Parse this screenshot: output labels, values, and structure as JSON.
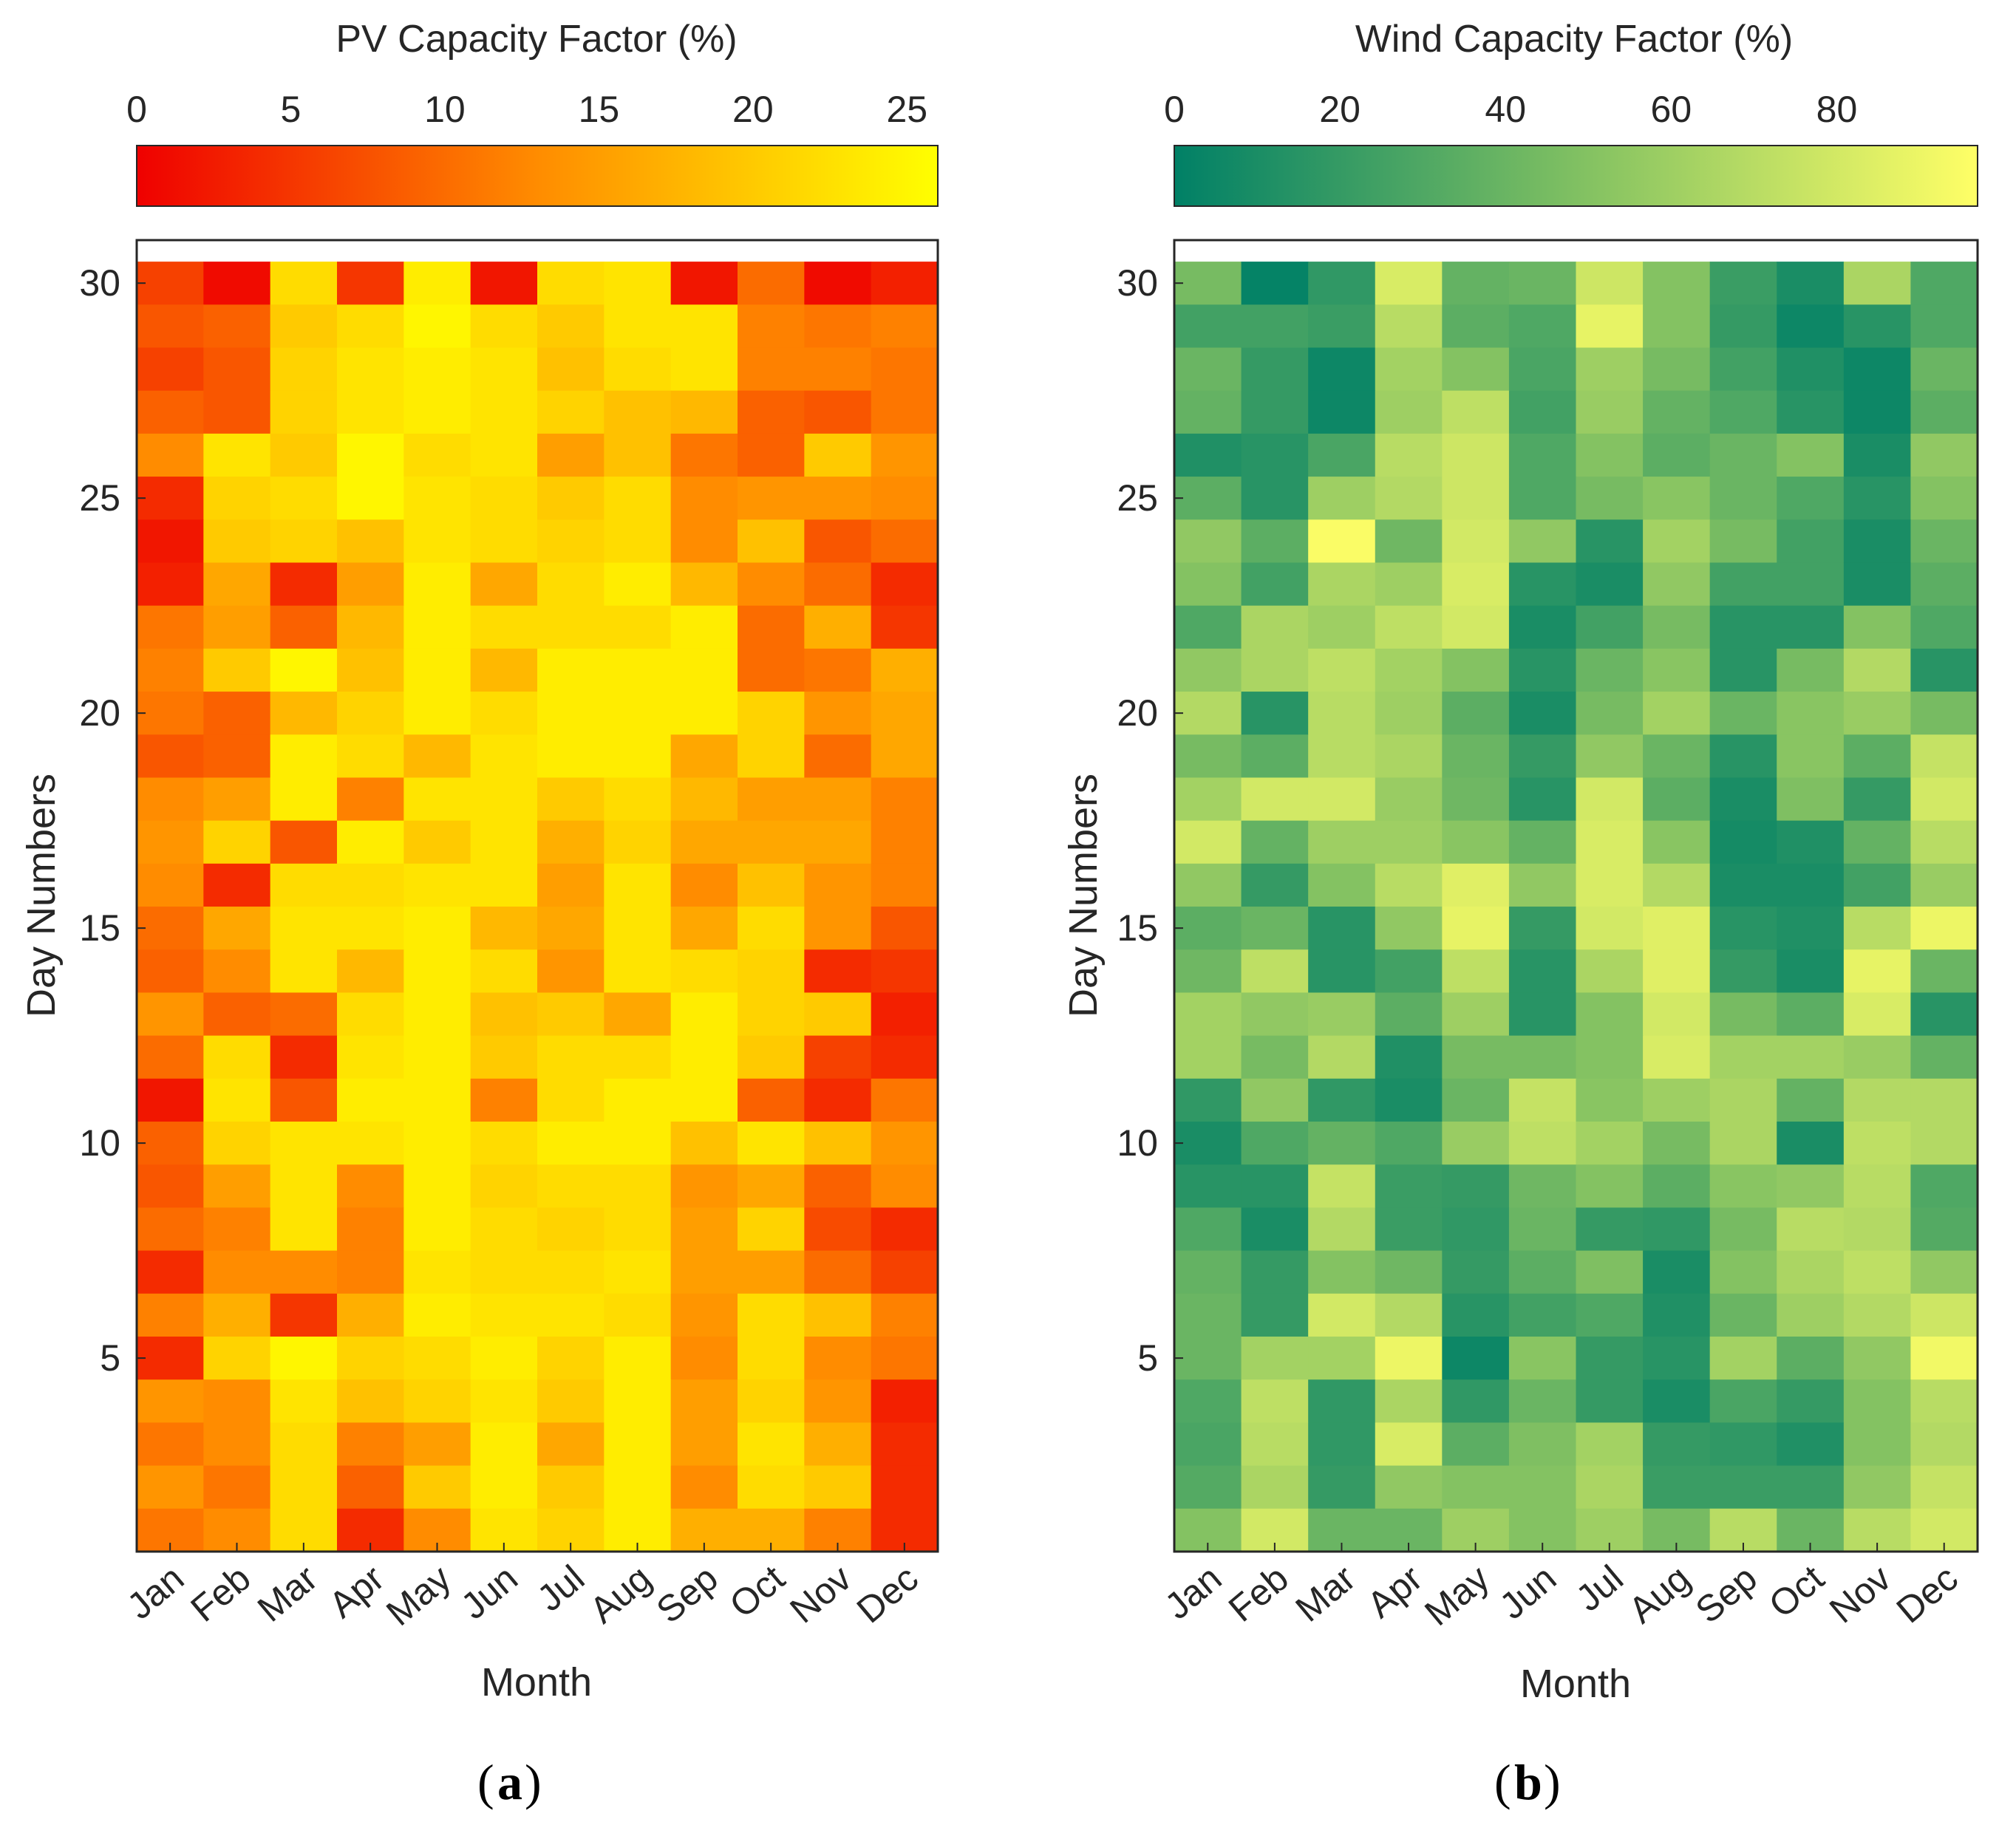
{
  "chart_data": [
    {
      "type": "heatmap",
      "panel_label": "a",
      "colorbar": {
        "title": "PV Capacity Factor (%)",
        "range": [
          0,
          26
        ],
        "ticks": [
          0,
          5,
          10,
          15,
          20,
          25
        ],
        "tick_labels": [
          "0",
          "5",
          "10",
          "15",
          "20",
          "25"
        ],
        "colormap_stops": [
          "#ef0000",
          "#ff8c00",
          "#ffff00"
        ]
      },
      "xlabel": "Month",
      "ylabel": "Day Numbers",
      "x_categories": [
        "Jan",
        "Feb",
        "Mar",
        "Apr",
        "May",
        "Jun",
        "Jul",
        "Aug",
        "Sep",
        "Oct",
        "Nov",
        "Dec"
      ],
      "y_ticks": [
        5,
        10,
        15,
        20,
        25,
        30
      ],
      "y_tick_labels": [
        "5",
        "10",
        "15",
        "20",
        "25",
        "30"
      ],
      "y_range": [
        0.5,
        30.5
      ],
      "cell_rows_note": "rows listed from the top row (day 30) downward to day 1",
      "values": [
        [
          6,
          1,
          22,
          5,
          24,
          2,
          22,
          23,
          2,
          10,
          1,
          3
        ],
        [
          8,
          9,
          20,
          22,
          25,
          22,
          20,
          23,
          23,
          12,
          11,
          12
        ],
        [
          6,
          8,
          21,
          23,
          24,
          23,
          19,
          22,
          23,
          12,
          12,
          11
        ],
        [
          9,
          8,
          21,
          23,
          24,
          23,
          21,
          19,
          18,
          9,
          8,
          11
        ],
        [
          13,
          23,
          20,
          25,
          22,
          23,
          15,
          19,
          11,
          9,
          20,
          14
        ],
        [
          4,
          21,
          22,
          25,
          23,
          22,
          20,
          22,
          13,
          14,
          14,
          13
        ],
        [
          2,
          20,
          21,
          19,
          23,
          22,
          21,
          22,
          13,
          19,
          8,
          10
        ],
        [
          3,
          16,
          4,
          15,
          24,
          16,
          22,
          24,
          18,
          13,
          10,
          4
        ],
        [
          11,
          15,
          9,
          18,
          24,
          22,
          22,
          22,
          24,
          10,
          17,
          5
        ],
        [
          12,
          20,
          25,
          19,
          24,
          18,
          24,
          24,
          24,
          10,
          11,
          17
        ],
        [
          11,
          9,
          18,
          21,
          24,
          22,
          24,
          24,
          24,
          21,
          14,
          16
        ],
        [
          8,
          9,
          24,
          22,
          18,
          23,
          24,
          24,
          16,
          21,
          10,
          16
        ],
        [
          13,
          15,
          24,
          12,
          23,
          23,
          20,
          22,
          18,
          15,
          15,
          12
        ],
        [
          14,
          21,
          8,
          24,
          20,
          23,
          17,
          21,
          16,
          16,
          16,
          12
        ],
        [
          13,
          4,
          22,
          22,
          23,
          23,
          15,
          23,
          13,
          19,
          14,
          12
        ],
        [
          10,
          16,
          23,
          23,
          24,
          18,
          16,
          23,
          16,
          22,
          14,
          8
        ],
        [
          9,
          13,
          23,
          18,
          24,
          22,
          14,
          23,
          22,
          21,
          4,
          5
        ],
        [
          14,
          9,
          10,
          22,
          24,
          19,
          20,
          16,
          24,
          21,
          20,
          3
        ],
        [
          10,
          22,
          4,
          23,
          24,
          20,
          22,
          22,
          24,
          20,
          6,
          4
        ],
        [
          2,
          23,
          8,
          24,
          24,
          12,
          22,
          24,
          24,
          9,
          4,
          11
        ],
        [
          9,
          21,
          23,
          23,
          24,
          22,
          24,
          24,
          19,
          23,
          19,
          14
        ],
        [
          8,
          15,
          23,
          13,
          24,
          21,
          22,
          22,
          14,
          16,
          9,
          13
        ],
        [
          10,
          12,
          23,
          12,
          24,
          22,
          21,
          22,
          15,
          21,
          7,
          4
        ],
        [
          4,
          13,
          13,
          12,
          23,
          22,
          22,
          23,
          15,
          15,
          10,
          6
        ],
        [
          12,
          17,
          5,
          17,
          24,
          23,
          23,
          22,
          14,
          22,
          19,
          12
        ],
        [
          4,
          21,
          25,
          21,
          22,
          24,
          21,
          24,
          13,
          22,
          13,
          11
        ],
        [
          14,
          13,
          23,
          19,
          21,
          23,
          20,
          24,
          15,
          21,
          14,
          3
        ],
        [
          11,
          13,
          22,
          12,
          15,
          24,
          16,
          24,
          15,
          23,
          17,
          4
        ],
        [
          14,
          11,
          22,
          9,
          20,
          24,
          20,
          24,
          13,
          22,
          20,
          4
        ],
        [
          11,
          13,
          22,
          4,
          13,
          23,
          21,
          24,
          17,
          17,
          12,
          4
        ]
      ]
    },
    {
      "type": "heatmap",
      "panel_label": "b",
      "colorbar": {
        "title": "Wind Capacity Factor (%)",
        "range": [
          0,
          97
        ],
        "ticks": [
          0,
          20,
          40,
          60,
          80
        ],
        "tick_labels": [
          "0",
          "20",
          "40",
          "60",
          "80"
        ],
        "colormap_stops": [
          "#008066",
          "#80c062",
          "#ffff66"
        ]
      },
      "xlabel": "Month",
      "ylabel": "Day Numbers",
      "x_categories": [
        "Jan",
        "Feb",
        "Mar",
        "Apr",
        "May",
        "Jun",
        "Jul",
        "Aug",
        "Sep",
        "Oct",
        "Nov",
        "Dec"
      ],
      "y_ticks": [
        5,
        10,
        15,
        20,
        25,
        30
      ],
      "y_tick_labels": [
        "5",
        "10",
        "15",
        "20",
        "25",
        "30"
      ],
      "y_range": [
        0.5,
        30.5
      ],
      "cell_rows_note": "rows listed from the top row (day 30) downward to day 1",
      "values": [
        [
          45,
          2,
          18,
          82,
          38,
          40,
          78,
          50,
          22,
          10,
          65,
          30
        ],
        [
          25,
          25,
          22,
          70,
          35,
          30,
          88,
          50,
          20,
          5,
          15,
          30
        ],
        [
          40,
          20,
          5,
          62,
          50,
          28,
          60,
          45,
          25,
          12,
          5,
          40
        ],
        [
          38,
          20,
          5,
          60,
          72,
          25,
          58,
          38,
          30,
          15,
          5,
          35
        ],
        [
          12,
          15,
          28,
          70,
          78,
          30,
          50,
          35,
          40,
          50,
          10,
          55
        ],
        [
          35,
          15,
          60,
          68,
          78,
          30,
          45,
          52,
          40,
          30,
          15,
          50
        ],
        [
          55,
          35,
          95,
          42,
          80,
          55,
          15,
          62,
          45,
          25,
          10,
          40
        ],
        [
          50,
          25,
          65,
          60,
          82,
          15,
          10,
          55,
          25,
          25,
          10,
          35
        ],
        [
          30,
          65,
          60,
          72,
          80,
          10,
          25,
          45,
          15,
          15,
          50,
          30
        ],
        [
          55,
          65,
          72,
          62,
          50,
          15,
          40,
          52,
          15,
          45,
          68,
          15
        ],
        [
          68,
          15,
          70,
          60,
          35,
          10,
          45,
          62,
          40,
          52,
          58,
          45
        ],
        [
          45,
          35,
          70,
          65,
          40,
          20,
          55,
          40,
          15,
          52,
          35,
          75
        ],
        [
          62,
          80,
          80,
          58,
          42,
          15,
          80,
          35,
          10,
          48,
          20,
          80
        ],
        [
          80,
          38,
          60,
          60,
          52,
          38,
          82,
          52,
          8,
          12,
          38,
          70
        ],
        [
          55,
          20,
          50,
          70,
          85,
          55,
          82,
          68,
          10,
          10,
          25,
          58
        ],
        [
          35,
          40,
          15,
          55,
          88,
          20,
          80,
          85,
          15,
          12,
          70,
          90
        ],
        [
          42,
          72,
          15,
          25,
          72,
          15,
          65,
          85,
          20,
          10,
          88,
          40
        ],
        [
          62,
          55,
          58,
          35,
          60,
          15,
          50,
          80,
          45,
          35,
          82,
          15
        ],
        [
          62,
          45,
          68,
          12,
          45,
          45,
          50,
          82,
          62,
          62,
          58,
          38
        ],
        [
          18,
          55,
          18,
          10,
          40,
          75,
          52,
          60,
          65,
          38,
          68,
          68
        ],
        [
          10,
          30,
          38,
          30,
          58,
          72,
          62,
          45,
          65,
          10,
          72,
          68
        ],
        [
          15,
          15,
          75,
          22,
          20,
          42,
          50,
          35,
          52,
          55,
          70,
          30
        ],
        [
          30,
          10,
          68,
          22,
          18,
          40,
          20,
          18,
          45,
          70,
          68,
          32
        ],
        [
          38,
          20,
          50,
          42,
          20,
          35,
          48,
          10,
          50,
          65,
          72,
          55
        ],
        [
          40,
          20,
          80,
          68,
          15,
          25,
          30,
          12,
          40,
          60,
          68,
          78
        ],
        [
          40,
          62,
          62,
          90,
          5,
          52,
          20,
          15,
          62,
          35,
          55,
          92
        ],
        [
          30,
          72,
          18,
          65,
          18,
          40,
          20,
          10,
          28,
          20,
          50,
          70
        ],
        [
          28,
          70,
          18,
          82,
          35,
          48,
          62,
          20,
          18,
          12,
          50,
          68
        ],
        [
          32,
          65,
          20,
          55,
          50,
          50,
          65,
          22,
          22,
          22,
          55,
          75
        ],
        [
          50,
          80,
          40,
          40,
          60,
          50,
          60,
          45,
          70,
          40,
          70,
          80
        ]
      ]
    }
  ]
}
